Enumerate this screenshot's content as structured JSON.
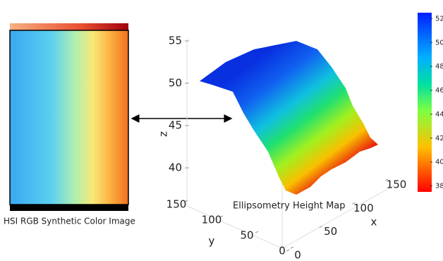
{
  "image": {
    "caption": "HSI RGB Synthetic Color Image"
  },
  "chart_data": {
    "type": "surface",
    "title": "Ellipsometry Height Map",
    "xlabel": "x",
    "ylabel": "y",
    "zlabel": "z",
    "xlim": [
      0,
      150
    ],
    "xticks": [
      0,
      50,
      100,
      150
    ],
    "ylim": [
      0,
      150
    ],
    "yticks": [
      0,
      50,
      100,
      150
    ],
    "zlim": [
      40,
      55
    ],
    "zticks": [
      40,
      45,
      50,
      55
    ],
    "colormap": "jet",
    "clim": [
      37.5,
      52.5
    ],
    "cticks": [
      38,
      40,
      42,
      44,
      46,
      48,
      50,
      52
    ]
  }
}
